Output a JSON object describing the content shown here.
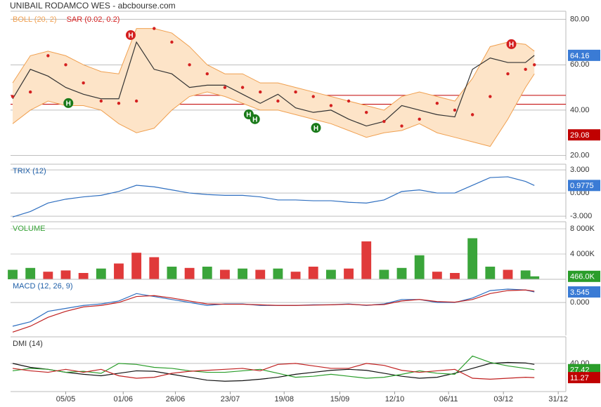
{
  "title": "UNIBAIL RODAMCO WES - abcbourse.com",
  "x_axis": {
    "x": [
      0,
      2,
      4,
      6,
      8,
      10,
      12,
      14,
      16,
      18,
      20,
      22,
      24,
      26,
      28,
      30,
      32,
      34,
      36,
      38,
      40,
      42,
      44,
      46,
      48,
      50,
      52,
      54,
      56,
      58,
      59
    ],
    "xlim": [
      -0.24,
      62.56
    ],
    "xticks": [
      {
        "value": 6.0,
        "label": "05/05"
      },
      {
        "value": 12.5,
        "label": "01/06"
      },
      {
        "value": 18.4,
        "label": "26/06"
      },
      {
        "value": 24.6,
        "label": "23/07"
      },
      {
        "value": 30.7,
        "label": "19/08"
      },
      {
        "value": 37.0,
        "label": "15/09"
      },
      {
        "value": 43.2,
        "label": "12/10"
      },
      {
        "value": 49.3,
        "label": "06/11"
      },
      {
        "value": 55.5,
        "label": "03/12"
      },
      {
        "value": 61.7,
        "label": "31/12"
      }
    ]
  },
  "chart_data": [
    {
      "type": "line",
      "ylim": [
        18,
        83
      ],
      "yticks": [
        {
          "value": 80,
          "label": "80.00"
        },
        {
          "value": 60,
          "label": "60.00"
        },
        {
          "value": 40,
          "label": "40.00"
        },
        {
          "value": 20,
          "label": "20.00"
        }
      ],
      "hlines": [
        {
          "value": 46.5,
          "color": "#c00000"
        },
        {
          "value": 42.6,
          "color": "#c00000"
        }
      ],
      "markers": [
        {
          "value": 29.08,
          "color": "#c00000"
        }
      ],
      "annotations": [
        {
          "x": 13.35,
          "y": 73.1,
          "label": "H",
          "color": "#d42020"
        },
        {
          "x": 56.4,
          "y": 69.1,
          "label": "H",
          "color": "#d42020"
        },
        {
          "x": 6.3,
          "y": 43.1,
          "label": "H",
          "color": "#1a7a1a"
        },
        {
          "x": 26.7,
          "y": 38.1,
          "label": "H",
          "color": "#1a7a1a"
        },
        {
          "x": 27.4,
          "y": 36.0,
          "label": "H",
          "color": "#1a7a1a"
        },
        {
          "x": 34.3,
          "y": 32.2,
          "label": "H",
          "color": "#1a7a1a"
        }
      ],
      "series": [
        {
          "name": "BOLL (20, 2)",
          "kind": "band",
          "color": "#f0a050",
          "fill": "#fde4c8",
          "upper": [
            52,
            64,
            66,
            64,
            60,
            57,
            56,
            76,
            76,
            74,
            68,
            60,
            56,
            56,
            52,
            52,
            50,
            48,
            46,
            44,
            42,
            40,
            46,
            48,
            46,
            44,
            54,
            68,
            70,
            69,
            66
          ],
          "lower": [
            34,
            40,
            44,
            42,
            42,
            40,
            34,
            30,
            32,
            40,
            46,
            48,
            46,
            43,
            40,
            40,
            38,
            36,
            34,
            31,
            28,
            30,
            31,
            34,
            30,
            28,
            26,
            24,
            36,
            50,
            56
          ]
        },
        {
          "kind": "line",
          "color": "#333333",
          "label_box": true,
          "box_color": "#3a7bd5",
          "values": [
            45,
            58,
            55,
            50,
            47,
            45,
            45,
            70,
            58,
            56,
            50,
            51,
            51,
            47,
            43,
            47,
            41,
            39,
            40,
            36,
            33,
            35,
            42,
            40,
            38,
            37,
            58,
            63,
            61,
            61,
            64.16
          ]
        },
        {
          "name": "SAR (0.02, 0.2)",
          "kind": "dots",
          "color": "#d42020",
          "values": [
            46,
            48,
            64,
            60,
            52,
            44,
            43,
            44,
            76,
            70,
            60,
            56,
            50,
            50,
            48,
            44,
            48,
            46,
            42,
            44,
            39,
            35,
            33,
            36,
            43,
            40,
            38,
            46,
            56,
            58,
            60
          ]
        }
      ]
    },
    {
      "type": "line",
      "title": "TRIX (12)",
      "title_color": "#1f5fa8",
      "ylim": [
        -3.36,
        3.55
      ],
      "yticks": [
        {
          "value": 3,
          "label": "3.000"
        },
        {
          "value": 0,
          "label": "0.000"
        },
        {
          "value": -3,
          "label": "-3.000"
        }
      ],
      "series": [
        {
          "kind": "line",
          "color": "#2f6fc0",
          "label_box": true,
          "box_color": "#3a7bd5",
          "values": [
            -3.1,
            -2.4,
            -1.3,
            -0.8,
            -0.5,
            -0.3,
            0.2,
            1.0,
            0.8,
            0.4,
            0.0,
            -0.2,
            -0.3,
            -0.3,
            -0.5,
            -0.9,
            -0.9,
            -1.0,
            -1.0,
            -1.2,
            -1.3,
            -0.9,
            0.2,
            0.4,
            0.0,
            0.0,
            1.0,
            2.0,
            2.1,
            1.5,
            0.9775
          ]
        }
      ]
    },
    {
      "type": "bar",
      "title": "VOLUME",
      "title_color": "#3aa53a",
      "ylim": [
        0,
        8889
      ],
      "yticks": [
        {
          "value": 8000,
          "label": "8 000K"
        },
        {
          "value": 4000,
          "label": "4 000K"
        }
      ],
      "series": [
        {
          "kind": "bars",
          "label_box": true,
          "box_color": "#2a9d2a",
          "values": [
            1500,
            1800,
            1200,
            1400,
            1000,
            1700,
            2500,
            4200,
            3500,
            2000,
            1800,
            2000,
            1500,
            1700,
            1500,
            1700,
            1200,
            2000,
            1500,
            1700,
            6000,
            1500,
            1800,
            3800,
            1200,
            1000,
            6500,
            2000,
            1500,
            1400,
            466
          ],
          "value_labels": [
            null,
            null,
            null,
            null,
            null,
            null,
            null,
            null,
            null,
            null,
            null,
            null,
            null,
            null,
            null,
            null,
            null,
            null,
            null,
            null,
            null,
            null,
            null,
            null,
            null,
            null,
            null,
            null,
            null,
            null,
            "466.0K"
          ],
          "colors": [
            "#3aa53a",
            "#3aa53a",
            "#e03a3a",
            "#e03a3a",
            "#e03a3a",
            "#3aa53a",
            "#e03a3a",
            "#e03a3a",
            "#e03a3a",
            "#3aa53a",
            "#e03a3a",
            "#3aa53a",
            "#e03a3a",
            "#3aa53a",
            "#e03a3a",
            "#3aa53a",
            "#e03a3a",
            "#e03a3a",
            "#3aa53a",
            "#e03a3a",
            "#e03a3a",
            "#3aa53a",
            "#3aa53a",
            "#3aa53a",
            "#e03a3a",
            "#e03a3a",
            "#3aa53a",
            "#3aa53a",
            "#e03a3a",
            "#3aa53a",
            "#3aa53a"
          ]
        }
      ]
    },
    {
      "type": "line",
      "title": "MACD (12, 26, 9)",
      "title_color": "#1f5fa8",
      "ylim": [
        -11.1,
        7.33
      ],
      "yticks": [
        {
          "value": 0,
          "label": "0.000"
        }
      ],
      "series": [
        {
          "kind": "line",
          "color": "#2f6fc0",
          "label_box": true,
          "box_color": "#3a7bd5",
          "values": [
            -8,
            -6.5,
            -3,
            -2,
            -1,
            -0.5,
            0.5,
            3,
            2,
            1,
            0,
            -1,
            -0.5,
            -0.5,
            -1,
            -1,
            -1,
            -0.8,
            -0.8,
            -0.5,
            -1,
            -0.5,
            1,
            1,
            0,
            0,
            1.5,
            4,
            4.5,
            4.2,
            3.545
          ]
        },
        {
          "kind": "line",
          "color": "#c02020",
          "values": [
            -10,
            -8,
            -5,
            -3,
            -1.5,
            -1,
            0,
            2,
            2.3,
            1.5,
            0.5,
            -0.5,
            -0.6,
            -0.6,
            -0.8,
            -1,
            -1,
            -0.9,
            -0.8,
            -0.6,
            -0.9,
            -0.7,
            0.5,
            1,
            0.3,
            0.1,
            1,
            3,
            4,
            4.2,
            3.8
          ]
        }
      ]
    },
    {
      "type": "line",
      "title": "DMI (14)",
      "title_color": "#333333",
      "ylim": [
        -17,
        91
      ],
      "yticks": [
        {
          "value": 40,
          "label": "40.00"
        }
      ],
      "series": [
        {
          "kind": "line",
          "color": "#111111",
          "values": [
            40,
            32,
            28,
            22,
            18,
            15,
            20,
            25,
            24,
            18,
            12,
            6,
            4,
            5,
            8,
            12,
            18,
            22,
            26,
            28,
            26,
            20,
            14,
            10,
            12,
            20,
            30,
            40,
            42,
            41,
            38
          ]
        },
        {
          "kind": "line",
          "color": "#2a9d2a",
          "label_box": true,
          "box_color": "#2a9d2a",
          "values": [
            25,
            30,
            28,
            22,
            24,
            20,
            40,
            38,
            32,
            30,
            25,
            22,
            22,
            25,
            28,
            20,
            12,
            14,
            18,
            14,
            10,
            12,
            18,
            25,
            20,
            18,
            55,
            42,
            35,
            30,
            27.42
          ]
        },
        {
          "kind": "line",
          "color": "#c02020",
          "label_box": true,
          "box_color": "#c00000",
          "values": [
            30,
            25,
            22,
            28,
            22,
            28,
            15,
            10,
            12,
            20,
            24,
            26,
            28,
            30,
            25,
            38,
            40,
            35,
            30,
            30,
            40,
            36,
            26,
            22,
            25,
            28,
            10,
            8,
            10,
            12,
            11.27
          ]
        }
      ]
    }
  ]
}
